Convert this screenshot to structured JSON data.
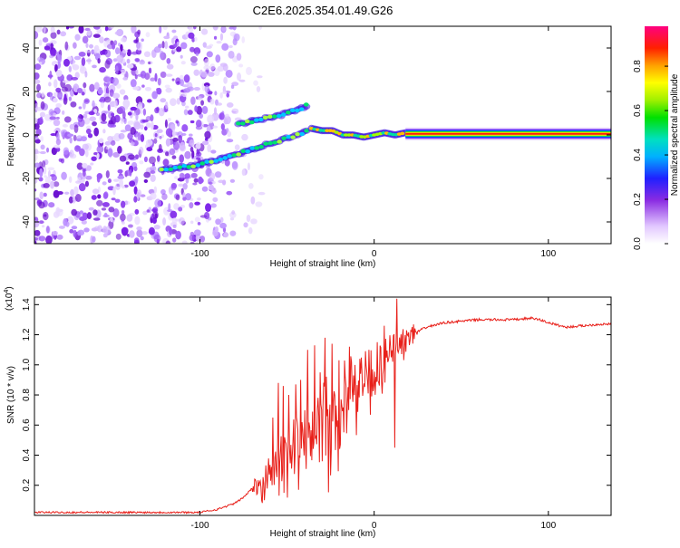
{
  "title": "C2E6.2025.354.01.49.G26",
  "chart_data": [
    {
      "type": "heatmap",
      "name": "spectrogram",
      "xlabel": "Height of straight line (km)",
      "ylabel": "Frequency (Hz)",
      "xlim": [
        -195,
        136
      ],
      "ylim": [
        -50,
        50
      ],
      "xticks": [
        -100,
        0,
        100
      ],
      "xtick_labels": [
        "-100",
        "0",
        "100"
      ],
      "yticks": [
        -40,
        -20,
        0,
        20,
        40
      ],
      "ytick_labels": [
        "-40",
        "-20",
        "0",
        "20",
        "40"
      ],
      "noise_region_x": [
        -195,
        -85
      ],
      "upper_branch": {
        "x": [
          -78,
          -72,
          -66,
          -60,
          -54,
          -48,
          -42,
          -38
        ],
        "y": [
          5,
          6,
          7,
          8,
          9,
          11,
          12,
          14
        ]
      },
      "lower_branch": {
        "x": [
          -122,
          -112,
          -102,
          -92,
          -84,
          -76,
          -68,
          -60,
          -52,
          -44,
          -38
        ],
        "y": [
          -16,
          -15,
          -14,
          -12,
          -10,
          -8,
          -6,
          -4,
          -2,
          0,
          2
        ]
      },
      "carrier": {
        "x": [
          -36,
          -30,
          -24,
          -18,
          -12,
          -6,
          0,
          6,
          12,
          18
        ],
        "y": [
          3,
          2,
          2,
          0,
          0,
          -1,
          0,
          1,
          0,
          1
        ],
        "steady_from": 18,
        "steady_to": 136,
        "steady_freq": 0.5
      },
      "colorbar": {
        "label": "Normalized spectral amplitude",
        "ticks": [
          0.0,
          0.2,
          0.4,
          0.6,
          0.8
        ],
        "tick_labels": [
          "0.0",
          "0.2",
          "0.4",
          "0.6",
          "0.8"
        ],
        "range": [
          0,
          0.98
        ]
      }
    },
    {
      "type": "line",
      "name": "snr",
      "xlabel": "Height of straight line (km)",
      "ylabel": "SNR (10 * v/v)",
      "multiplier": "(x10",
      "multiplier_exp": "4",
      "multiplier_close": ")",
      "xlim": [
        -195,
        136
      ],
      "ylim": [
        0,
        1.45
      ],
      "xticks": [
        -100,
        0,
        100
      ],
      "xtick_labels": [
        "-100",
        "0",
        "100"
      ],
      "yticks": [
        0.2,
        0.4,
        0.6,
        0.8,
        1.0,
        1.2,
        1.4
      ],
      "ytick_labels": [
        "0.2",
        "0.4",
        "0.6",
        "0.8",
        "1.0",
        "1.2",
        "1.4"
      ],
      "color": "#e8201a",
      "envelope_x": [
        -195,
        -100,
        -95,
        -90,
        -85,
        -80,
        -75,
        -70,
        -65,
        -60,
        -55,
        -50,
        -45,
        -40,
        -35,
        -30,
        -25,
        -20,
        -15,
        -10,
        -5,
        0,
        5,
        10,
        15,
        20,
        25,
        30,
        40,
        50,
        60,
        70,
        80,
        90,
        95,
        100,
        110,
        120,
        130,
        136
      ],
      "envelope_y": [
        0.02,
        0.02,
        0.03,
        0.04,
        0.06,
        0.08,
        0.12,
        0.18,
        0.25,
        0.32,
        0.38,
        0.45,
        0.52,
        0.58,
        0.63,
        0.68,
        0.74,
        0.8,
        0.86,
        0.91,
        0.96,
        1.0,
        1.06,
        1.1,
        1.15,
        1.18,
        1.22,
        1.25,
        1.28,
        1.29,
        1.3,
        1.3,
        1.3,
        1.31,
        1.3,
        1.28,
        1.25,
        1.26,
        1.27,
        1.27
      ],
      "spikes_x": [
        -58,
        -55,
        -52,
        -49,
        -45,
        -42,
        -38,
        -34,
        -31,
        -28,
        -24,
        -20,
        -14,
        -8,
        -3,
        6,
        10,
        12,
        13
      ],
      "spikes_y": [
        0.65,
        0.88,
        0.86,
        0.8,
        0.87,
        0.9,
        1.1,
        1.13,
        0.95,
        1.18,
        1.14,
        1.03,
        1.12,
        1.04,
        1.1,
        1.26,
        1.05,
        0.45,
        1.44
      ]
    }
  ]
}
